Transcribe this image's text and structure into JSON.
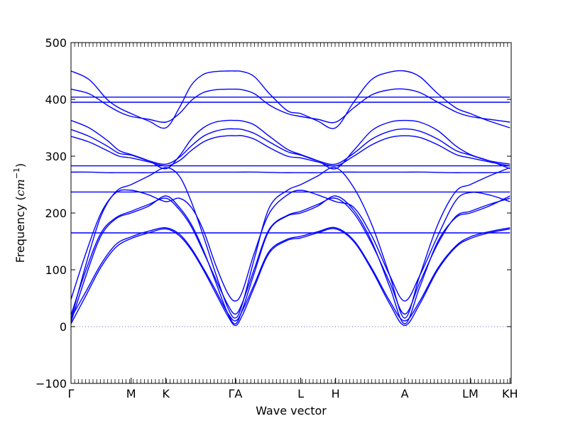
{
  "chart_data": {
    "type": "line",
    "title": "",
    "xlabel": "Wave vector",
    "ylabel": "Frequency (cm⁻¹)",
    "ylabel_parts": {
      "text": "Frequency (",
      "unit_base": "cm",
      "unit_exp": "−1",
      "close": ")"
    },
    "ylim": [
      -100,
      500
    ],
    "yticks": [
      -100,
      0,
      100,
      200,
      300,
      400,
      500
    ],
    "grid": false,
    "legend": "none",
    "line_color": "#0000ff",
    "zero_line_color": "#6666cc",
    "high_symmetry_points": [
      {
        "label": "Γ",
        "x": 0.0
      },
      {
        "label": "M",
        "x": 1.0
      },
      {
        "label": "K",
        "x": 1.577
      },
      {
        "label": "ΓA",
        "x": 2.732
      },
      {
        "label": "L",
        "x": 3.82
      },
      {
        "label": "H",
        "x": 4.4
      },
      {
        "label": "A",
        "x": 5.55
      },
      {
        "label": "LM",
        "x": 6.64
      },
      {
        "label": "KH",
        "x": 7.3
      }
    ],
    "xlim": [
      0,
      7.32
    ],
    "series": [
      {
        "x": [
          0,
          0.25,
          0.5,
          0.75,
          1.0,
          1.29,
          1.577,
          1.8,
          2.0,
          2.2,
          2.4,
          2.6,
          2.732,
          2.85,
          3.05,
          3.3,
          3.6,
          3.82,
          4.1,
          4.4,
          4.7,
          5.0,
          5.3,
          5.55,
          5.8,
          6.1,
          6.4,
          6.64,
          6.95,
          7.3
        ],
        "y": [
          5,
          55,
          105,
          140,
          155,
          165,
          172,
          160,
          135,
          100,
          60,
          20,
          2,
          20,
          70,
          130,
          152,
          156,
          165,
          172,
          150,
          100,
          40,
          2,
          40,
          100,
          140,
          155,
          165,
          172
        ]
      },
      {
        "x": [
          0,
          0.25,
          0.5,
          0.75,
          1.0,
          1.29,
          1.577,
          1.8,
          2.0,
          2.2,
          2.4,
          2.6,
          2.732,
          2.85,
          3.05,
          3.3,
          3.6,
          3.82,
          4.1,
          4.4,
          4.7,
          5.0,
          5.3,
          5.55,
          5.8,
          6.1,
          6.4,
          6.64,
          6.95,
          7.3
        ],
        "y": [
          15,
          62,
          110,
          145,
          158,
          168,
          174,
          163,
          138,
          103,
          65,
          25,
          10,
          28,
          75,
          133,
          154,
          159,
          167,
          174,
          152,
          103,
          45,
          10,
          45,
          103,
          142,
          158,
          167,
          174
        ]
      },
      {
        "x": [
          0,
          0.25,
          0.5,
          0.75,
          1.0,
          1.29,
          1.577,
          1.8,
          2.0,
          2.2,
          2.4,
          2.6,
          2.732,
          2.85,
          3.05,
          3.3,
          3.6,
          3.82,
          4.1,
          4.4,
          4.7,
          5.0,
          5.3,
          5.55,
          5.8,
          6.1,
          6.4,
          6.64,
          6.95,
          7.3
        ],
        "y": [
          8,
          90,
          160,
          190,
          200,
          212,
          230,
          210,
          180,
          135,
          80,
          25,
          5,
          30,
          95,
          170,
          195,
          200,
          212,
          230,
          205,
          150,
          70,
          5,
          70,
          150,
          192,
          200,
          212,
          230
        ]
      },
      {
        "x": [
          0,
          0.25,
          0.5,
          0.75,
          1.0,
          1.29,
          1.577,
          1.8,
          2.0,
          2.2,
          2.4,
          2.6,
          2.732,
          2.85,
          3.05,
          3.3,
          3.6,
          3.82,
          4.1,
          4.4,
          4.7,
          5.0,
          5.3,
          5.55,
          5.8,
          6.1,
          6.4,
          6.64,
          6.95,
          7.3
        ],
        "y": [
          20,
          100,
          165,
          192,
          203,
          215,
          226,
          206,
          176,
          132,
          85,
          40,
          22,
          42,
          102,
          172,
          196,
          203,
          215,
          226,
          200,
          146,
          78,
          22,
          78,
          146,
          194,
          203,
          215,
          226
        ]
      },
      {
        "x": [
          0,
          0.25,
          0.5,
          0.75,
          1.0,
          1.29,
          1.577,
          1.8,
          2.0,
          2.2,
          2.4,
          2.6,
          2.732,
          2.85,
          3.05,
          3.3,
          3.6,
          3.82,
          4.1,
          4.4,
          4.7,
          5.0,
          5.3,
          5.55,
          5.8,
          6.1,
          6.4,
          6.64,
          6.95,
          7.3
        ],
        "y": [
          12,
          110,
          195,
          238,
          250,
          265,
          280,
          265,
          220,
          160,
          95,
          35,
          15,
          40,
          120,
          210,
          240,
          250,
          265,
          280,
          245,
          180,
          90,
          15,
          90,
          180,
          238,
          250,
          265,
          280
        ]
      },
      {
        "x": [
          0,
          0.25,
          0.5,
          0.75,
          1.0,
          1.29,
          1.577,
          1.8,
          2.0,
          2.2,
          2.4,
          2.6,
          2.732,
          2.85,
          3.05,
          3.3,
          3.6,
          3.82,
          4.1,
          4.4,
          4.7,
          5.0,
          5.3,
          5.55,
          5.8,
          6.1,
          6.4,
          6.64,
          6.95,
          7.3
        ],
        "y": [
          48,
          130,
          200,
          236,
          240,
          232,
          220,
          226,
          210,
          170,
          110,
          60,
          45,
          62,
          130,
          200,
          232,
          240,
          232,
          220,
          210,
          160,
          90,
          45,
          90,
          160,
          222,
          236,
          232,
          220
        ]
      },
      {
        "x": [
          0,
          0.3,
          0.6,
          0.8,
          1.0,
          1.29,
          1.577,
          1.9,
          2.3,
          2.732,
          3.1,
          3.5,
          3.82,
          4.1,
          4.4,
          4.8,
          5.2,
          5.55,
          5.9,
          6.3,
          6.64,
          6.95,
          7.3
        ],
        "y": [
          283,
          283,
          283,
          283,
          283,
          283,
          283,
          283,
          283,
          283,
          283,
          283,
          283,
          283,
          283,
          283,
          283,
          283,
          283,
          283,
          283,
          283,
          283
        ]
      },
      {
        "x": [
          0,
          0.3,
          0.6,
          0.8,
          1.0,
          1.29,
          1.577,
          1.9,
          2.3,
          2.732,
          3.1,
          3.5,
          3.82,
          4.1,
          4.4,
          4.8,
          5.2,
          5.55,
          5.9,
          6.3,
          6.64,
          6.95,
          7.3
        ],
        "y": [
          272,
          272,
          271,
          271,
          271,
          271,
          272,
          272,
          272,
          272,
          272,
          271,
          271,
          271,
          272,
          272,
          272,
          272,
          272,
          271,
          271,
          271,
          272
        ]
      },
      {
        "x": [
          0,
          0.3,
          0.6,
          0.8,
          1.0,
          1.29,
          1.577,
          1.9,
          2.3,
          2.732,
          3.1,
          3.5,
          3.82,
          4.1,
          4.4,
          4.8,
          5.2,
          5.55,
          5.9,
          6.3,
          6.64,
          6.95,
          7.3
        ],
        "y": [
          237,
          237,
          237,
          237,
          237,
          237,
          237,
          237,
          237,
          237,
          237,
          237,
          237,
          237,
          237,
          237,
          237,
          237,
          237,
          237,
          237,
          237,
          237
        ]
      },
      {
        "x": [
          0,
          0.3,
          0.6,
          0.8,
          1.0,
          1.29,
          1.577,
          1.9,
          2.3,
          2.732,
          3.1,
          3.5,
          3.82,
          4.1,
          4.4,
          4.8,
          5.2,
          5.55,
          5.9,
          6.3,
          6.64,
          6.95,
          7.3
        ],
        "y": [
          165,
          165,
          165,
          165,
          165,
          165,
          165,
          165,
          165,
          165,
          165,
          165,
          165,
          165,
          165,
          165,
          165,
          165,
          165,
          165,
          165,
          165,
          165
        ]
      },
      {
        "x": [
          0,
          0.3,
          0.6,
          0.8,
          1.0,
          1.29,
          1.577,
          1.8,
          2.0,
          2.2,
          2.4,
          2.6,
          2.732,
          2.85,
          3.05,
          3.3,
          3.6,
          3.82,
          4.1,
          4.4,
          4.7,
          5.0,
          5.3,
          5.55,
          5.8,
          6.1,
          6.4,
          6.64,
          6.95,
          7.3
        ],
        "y": [
          335,
          325,
          310,
          300,
          297,
          290,
          283,
          292,
          310,
          325,
          333,
          336,
          336,
          336,
          330,
          315,
          300,
          297,
          290,
          283,
          300,
          320,
          333,
          336,
          333,
          320,
          303,
          297,
          290,
          283
        ]
      },
      {
        "x": [
          0,
          0.3,
          0.6,
          0.8,
          1.0,
          1.29,
          1.577,
          1.8,
          2.0,
          2.2,
          2.4,
          2.6,
          2.732,
          2.85,
          3.05,
          3.3,
          3.6,
          3.82,
          4.1,
          4.4,
          4.7,
          5.0,
          5.3,
          5.55,
          5.8,
          6.1,
          6.4,
          6.64,
          6.95,
          7.3
        ],
        "y": [
          347,
          335,
          318,
          305,
          302,
          292,
          286,
          298,
          318,
          335,
          344,
          348,
          348,
          347,
          340,
          325,
          308,
          302,
          292,
          286,
          305,
          330,
          344,
          348,
          344,
          330,
          310,
          302,
          292,
          286
        ]
      },
      {
        "x": [
          0,
          0.3,
          0.6,
          0.8,
          1.0,
          1.29,
          1.577,
          1.8,
          2.0,
          2.2,
          2.4,
          2.6,
          2.732,
          2.85,
          3.05,
          3.3,
          3.6,
          3.82,
          4.1,
          4.4,
          4.7,
          5.0,
          5.3,
          5.55,
          5.8,
          6.1,
          6.4,
          6.64,
          6.95,
          7.3
        ],
        "y": [
          363,
          350,
          328,
          310,
          303,
          292,
          278,
          300,
          330,
          350,
          360,
          363,
          363,
          362,
          355,
          335,
          312,
          303,
          292,
          278,
          310,
          345,
          360,
          363,
          360,
          345,
          318,
          303,
          292,
          278
        ]
      },
      {
        "x": [
          0,
          0.3,
          0.6,
          0.8,
          1.0,
          1.29,
          1.577,
          1.9,
          2.3,
          2.732,
          3.1,
          3.5,
          3.82,
          4.1,
          4.4,
          4.8,
          5.2,
          5.55,
          5.9,
          6.3,
          6.64,
          6.95,
          7.3
        ],
        "y": [
          404,
          404,
          404,
          404,
          404,
          404,
          404,
          404,
          404,
          404,
          404,
          404,
          404,
          404,
          404,
          404,
          404,
          404,
          404,
          404,
          404,
          404,
          404
        ]
      },
      {
        "x": [
          0,
          0.3,
          0.6,
          0.8,
          1.0,
          1.29,
          1.577,
          1.9,
          2.3,
          2.732,
          3.1,
          3.5,
          3.82,
          4.1,
          4.4,
          4.8,
          5.2,
          5.55,
          5.9,
          6.3,
          6.64,
          6.95,
          7.3
        ],
        "y": [
          395,
          395,
          395,
          395,
          395,
          395,
          395,
          395,
          395,
          395,
          395,
          395,
          395,
          395,
          395,
          395,
          395,
          395,
          395,
          395,
          395,
          395,
          395
        ]
      },
      {
        "x": [
          0,
          0.3,
          0.6,
          0.8,
          1.0,
          1.29,
          1.577,
          1.8,
          2.0,
          2.2,
          2.4,
          2.6,
          2.732,
          2.85,
          3.05,
          3.3,
          3.6,
          3.82,
          4.1,
          4.4,
          4.7,
          5.0,
          5.3,
          5.55,
          5.8,
          6.1,
          6.4,
          6.64,
          6.95,
          7.3
        ],
        "y": [
          418,
          410,
          390,
          378,
          370,
          365,
          360,
          375,
          398,
          412,
          417,
          418,
          418,
          417,
          410,
          390,
          375,
          370,
          365,
          360,
          385,
          408,
          417,
          418,
          412,
          395,
          378,
          370,
          365,
          360
        ]
      },
      {
        "x": [
          0,
          0.3,
          0.6,
          0.8,
          1.0,
          1.29,
          1.577,
          1.8,
          2.0,
          2.2,
          2.4,
          2.6,
          2.732,
          2.85,
          3.05,
          3.3,
          3.6,
          3.82,
          4.1,
          4.4,
          4.7,
          5.0,
          5.3,
          5.55,
          5.8,
          6.1,
          6.4,
          6.64,
          6.95,
          7.3
        ],
        "y": [
          450,
          435,
          400,
          385,
          375,
          362,
          350,
          385,
          425,
          444,
          449,
          450,
          450,
          449,
          440,
          410,
          380,
          375,
          362,
          350,
          395,
          435,
          448,
          450,
          440,
          410,
          385,
          375,
          362,
          350
        ]
      }
    ]
  }
}
